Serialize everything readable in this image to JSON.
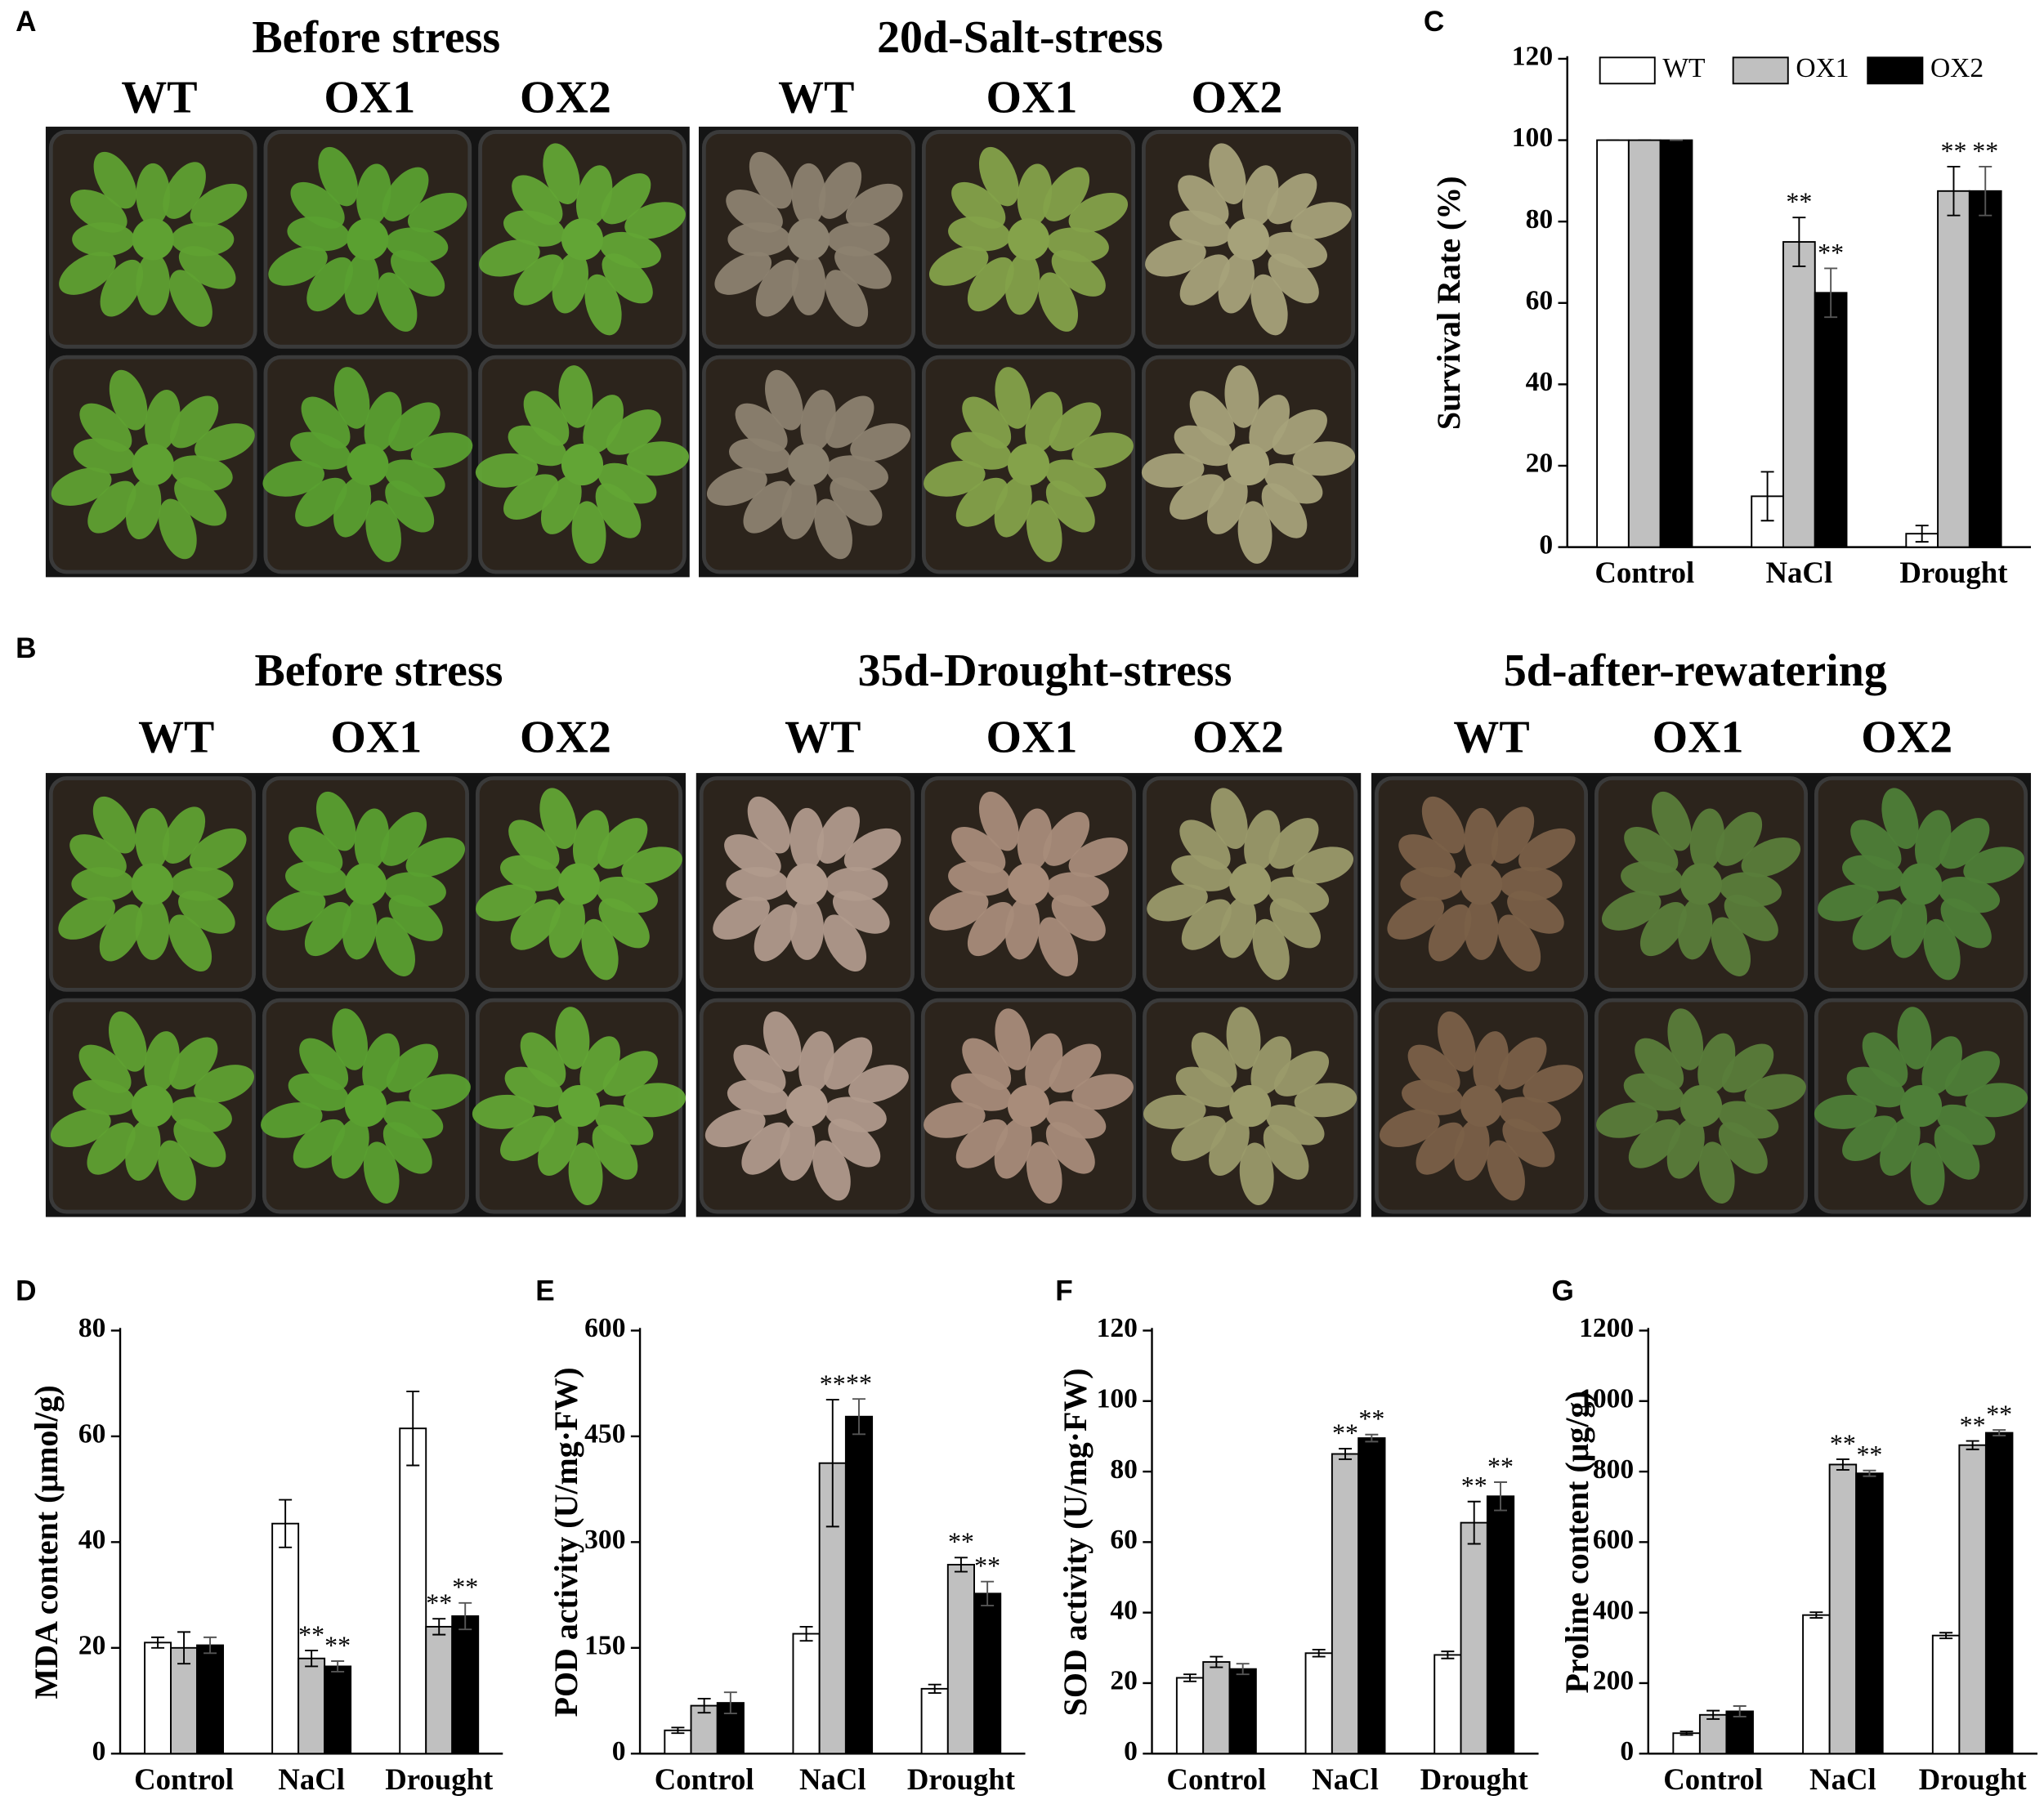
{
  "photos": [
    {
      "label": "A",
      "groups": [
        {
          "title": "Before stress",
          "columns": [
            "WT",
            "OX1",
            "OX2"
          ]
        },
        {
          "title": "20d-Salt-stress",
          "columns": [
            "WT",
            "OX1",
            "OX2"
          ]
        }
      ]
    },
    {
      "label": "B",
      "groups": [
        {
          "title": "Before stress",
          "columns": [
            "WT",
            "OX1",
            "OX2"
          ]
        },
        {
          "title": "35d-Drought-stress",
          "columns": [
            "WT",
            "OX1",
            "OX2"
          ]
        },
        {
          "title": "5d-after-rewatering",
          "columns": [
            "WT",
            "OX1",
            "OX2"
          ]
        }
      ]
    }
  ],
  "chart_data": [
    {
      "type": "bar",
      "label": "C",
      "ylabel": "Survival Rate (%)",
      "categories": [
        "Control",
        "NaCl",
        "Drought"
      ],
      "ylim": [
        0,
        120
      ],
      "yticks": [
        0,
        20,
        40,
        60,
        80,
        100,
        120
      ],
      "legend": true,
      "series": [
        {
          "name": "WT",
          "color": "#ffffff",
          "values": [
            100,
            12.5,
            3.3
          ],
          "errors": [
            0,
            6,
            2
          ],
          "annotations": [
            null,
            null,
            null
          ]
        },
        {
          "name": "OX1",
          "color": "#c0c0c0",
          "values": [
            100,
            75,
            87.5
          ],
          "errors": [
            0,
            6,
            6
          ],
          "annotations": [
            null,
            "**",
            "**"
          ]
        },
        {
          "name": "OX2",
          "color": "#000000",
          "values": [
            100,
            62.5,
            87.5
          ],
          "errors": [
            0,
            6,
            6
          ],
          "annotations": [
            null,
            "**",
            "**"
          ]
        }
      ]
    },
    {
      "type": "bar",
      "label": "D",
      "ylabel": "MDA content (μmol/g)",
      "categories": [
        "Control",
        "NaCl",
        "Drought"
      ],
      "ylim": [
        0,
        80
      ],
      "yticks": [
        0,
        20,
        40,
        60,
        80
      ],
      "series": [
        {
          "color": "#ffffff",
          "values": [
            21,
            43.5,
            61.5
          ],
          "errors": [
            1,
            4.5,
            7
          ],
          "annotations": [
            null,
            null,
            null
          ]
        },
        {
          "color": "#c0c0c0",
          "values": [
            20,
            18,
            24
          ],
          "errors": [
            3,
            1.5,
            1.5
          ],
          "annotations": [
            null,
            "**",
            "**"
          ]
        },
        {
          "color": "#000000",
          "values": [
            20.5,
            16.5,
            26
          ],
          "errors": [
            1.5,
            1,
            2.5
          ],
          "annotations": [
            null,
            "**",
            "**"
          ]
        }
      ]
    },
    {
      "type": "bar",
      "label": "E",
      "ylabel": "POD activity (U/mg·FW)",
      "categories": [
        "Control",
        "NaCl",
        "Drought"
      ],
      "ylim": [
        0,
        600
      ],
      "yticks": [
        0,
        150,
        300,
        450,
        600
      ],
      "series": [
        {
          "color": "#ffffff",
          "values": [
            33,
            170,
            92
          ],
          "errors": [
            4,
            10,
            6
          ],
          "annotations": [
            null,
            null,
            null
          ]
        },
        {
          "color": "#c0c0c0",
          "values": [
            68,
            412,
            268
          ],
          "errors": [
            10,
            90,
            10
          ],
          "annotations": [
            null,
            "**",
            "**"
          ]
        },
        {
          "color": "#000000",
          "values": [
            72,
            478,
            227
          ],
          "errors": [
            15,
            25,
            17
          ],
          "annotations": [
            null,
            "**",
            "**"
          ]
        }
      ]
    },
    {
      "type": "bar",
      "label": "F",
      "ylabel": "SOD activity (U/mg·FW)",
      "categories": [
        "Control",
        "NaCl",
        "Drought"
      ],
      "ylim": [
        0,
        120
      ],
      "yticks": [
        0,
        20,
        40,
        60,
        80,
        100,
        120
      ],
      "series": [
        {
          "color": "#ffffff",
          "values": [
            21.5,
            28.5,
            28
          ],
          "errors": [
            1,
            1,
            1
          ],
          "annotations": [
            null,
            null,
            null
          ]
        },
        {
          "color": "#c0c0c0",
          "values": [
            26,
            85,
            65.5
          ],
          "errors": [
            1.5,
            1.5,
            6
          ],
          "annotations": [
            null,
            "**",
            "**"
          ]
        },
        {
          "color": "#000000",
          "values": [
            24,
            89.5,
            73
          ],
          "errors": [
            1.5,
            1,
            4
          ],
          "annotations": [
            null,
            "**",
            "**"
          ]
        }
      ]
    },
    {
      "type": "bar",
      "label": "G",
      "ylabel": "Proline content (μg/g)",
      "categories": [
        "Control",
        "NaCl",
        "Drought"
      ],
      "ylim": [
        0,
        1200
      ],
      "yticks": [
        0,
        200,
        400,
        600,
        800,
        1000,
        1200
      ],
      "series": [
        {
          "color": "#ffffff",
          "values": [
            58,
            393,
            335
          ],
          "errors": [
            5,
            8,
            8
          ],
          "annotations": [
            null,
            null,
            null
          ]
        },
        {
          "color": "#c0c0c0",
          "values": [
            110,
            820,
            875
          ],
          "errors": [
            12,
            15,
            12
          ],
          "annotations": [
            null,
            "**",
            "**"
          ]
        },
        {
          "color": "#000000",
          "values": [
            120,
            795,
            910
          ],
          "errors": [
            15,
            8,
            8
          ],
          "annotations": [
            null,
            "**",
            "**"
          ]
        }
      ]
    }
  ]
}
